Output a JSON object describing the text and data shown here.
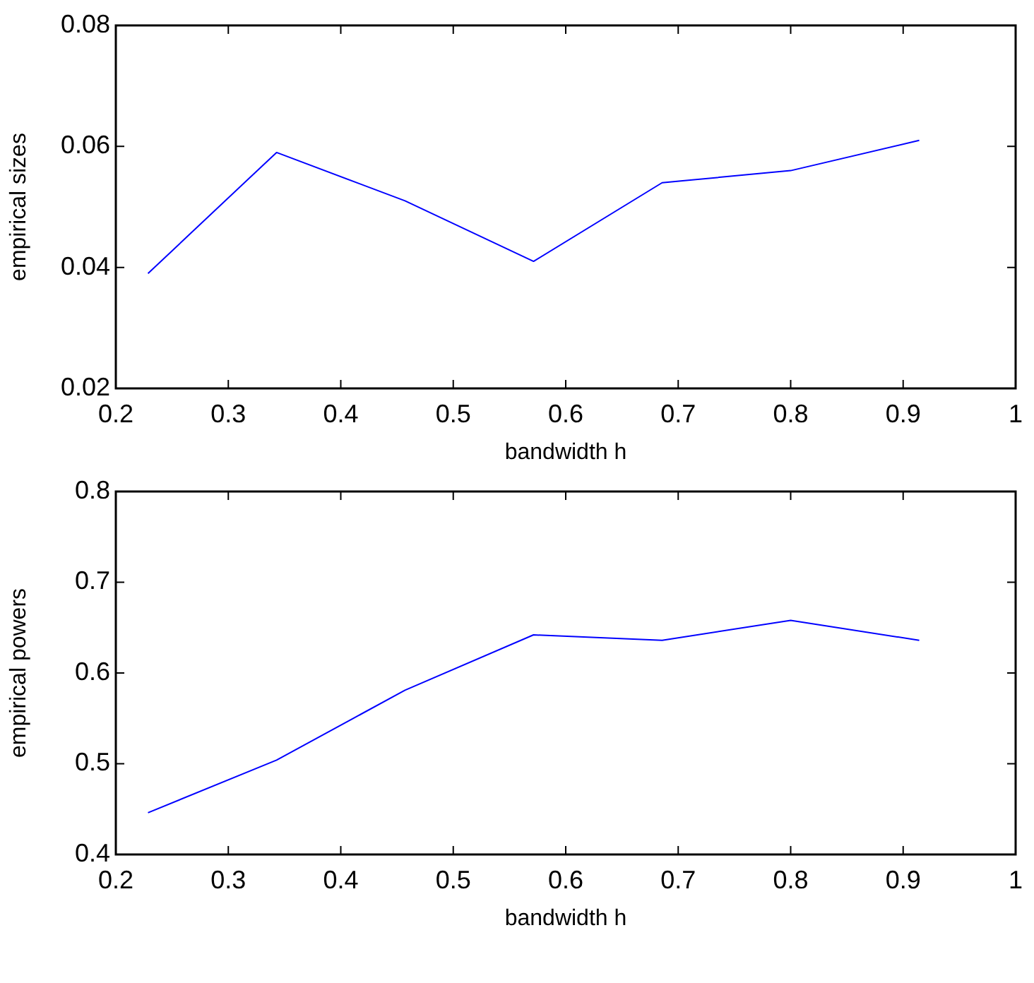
{
  "chart_data": [
    {
      "type": "line",
      "xlabel": "bandwidth h",
      "ylabel": "empirical sizes",
      "x": [
        0.2286,
        0.3429,
        0.4571,
        0.5714,
        0.6857,
        0.8,
        0.9143
      ],
      "series": [
        {
          "color": "#0000ff",
          "values": [
            0.039,
            0.059,
            0.051,
            0.041,
            0.054,
            0.056,
            0.061
          ]
        }
      ],
      "xlim": [
        0.2,
        1
      ],
      "xticks": [
        0.2,
        0.3,
        0.4,
        0.5,
        0.6,
        0.7,
        0.8,
        0.9,
        1
      ],
      "ylim": [
        0.02,
        0.08
      ],
      "yticks": [
        0.02,
        0.04,
        0.06,
        0.08
      ],
      "grid": false,
      "legend": false,
      "marker": "none",
      "line_style": "solid"
    },
    {
      "type": "line",
      "xlabel": "bandwidth h",
      "ylabel": "empirical powers",
      "x": [
        0.2286,
        0.3429,
        0.4571,
        0.5714,
        0.6857,
        0.8,
        0.9143
      ],
      "series": [
        {
          "color": "#0000ff",
          "values": [
            0.446,
            0.504,
            0.581,
            0.642,
            0.636,
            0.658,
            0.636
          ]
        }
      ],
      "xlim": [
        0.2,
        1
      ],
      "xticks": [
        0.2,
        0.3,
        0.4,
        0.5,
        0.6,
        0.7,
        0.8,
        0.9,
        1
      ],
      "ylim": [
        0.4,
        0.8
      ],
      "yticks": [
        0.4,
        0.5,
        0.6,
        0.7,
        0.8
      ],
      "grid": false,
      "legend": false,
      "marker": "none",
      "line_style": "solid"
    }
  ]
}
